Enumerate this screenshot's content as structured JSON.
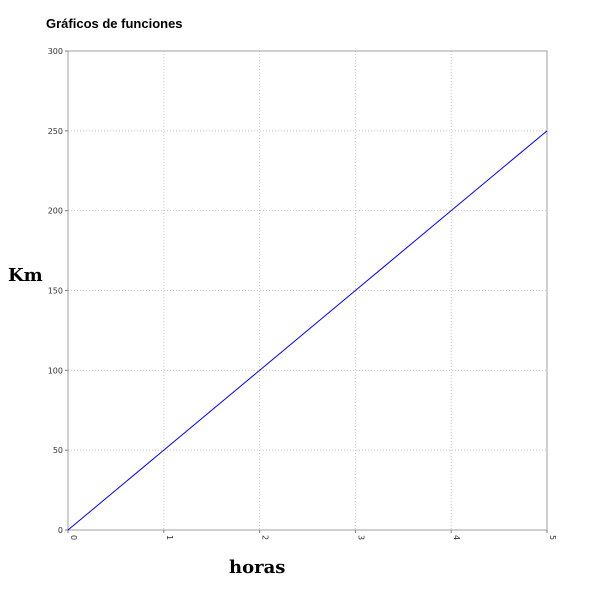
{
  "chart_data": {
    "type": "line",
    "title": "Gráficos de funciones",
    "xlabel": "horas",
    "ylabel": "Km",
    "xlim": [
      0,
      5
    ],
    "ylim": [
      0,
      300
    ],
    "x_ticks": [
      0,
      1,
      2,
      3,
      4,
      5
    ],
    "y_ticks": [
      0,
      50,
      100,
      150,
      200,
      250,
      300
    ],
    "grid": true,
    "series": [
      {
        "x": [
          0,
          1,
          2,
          3,
          4,
          5
        ],
        "values": [
          0,
          50,
          100,
          150,
          200,
          250
        ],
        "color": "#0000ff"
      }
    ]
  }
}
